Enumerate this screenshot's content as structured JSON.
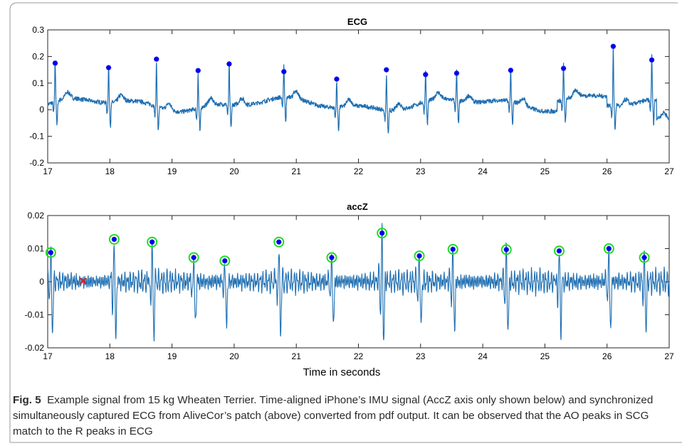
{
  "chart_data": [
    {
      "type": "line",
      "title": "ECG",
      "xlabel": "",
      "ylabel": "",
      "xlim": [
        17,
        27
      ],
      "ylim": [
        -0.2,
        0.3
      ],
      "x_ticks": [
        "17",
        "18",
        "19",
        "20",
        "21",
        "22",
        "23",
        "24",
        "25",
        "26",
        "27"
      ],
      "y_ticks": [
        "-0.2",
        "-0.1",
        "0",
        "0.1",
        "0.2",
        "0.3"
      ],
      "line_color": "#1f6fb2",
      "marker_color": "#0000ee",
      "r_peaks": {
        "x": [
          17.12,
          17.98,
          18.75,
          19.42,
          19.92,
          20.8,
          21.65,
          22.45,
          23.08,
          23.58,
          24.45,
          25.3,
          26.1,
          26.72
        ],
        "y": [
          0.175,
          0.158,
          0.19,
          0.147,
          0.172,
          0.143,
          0.115,
          0.15,
          0.132,
          0.137,
          0.148,
          0.155,
          0.238,
          0.187
        ]
      }
    },
    {
      "type": "line",
      "title": "accZ",
      "xlabel": "Time in seconds",
      "ylabel": "",
      "xlim": [
        17,
        27
      ],
      "ylim": [
        -0.02,
        0.02
      ],
      "x_ticks": [
        "17",
        "18",
        "19",
        "20",
        "21",
        "22",
        "23",
        "24",
        "25",
        "26",
        "27"
      ],
      "y_ticks": [
        "-0.02",
        "-0.01",
        "0",
        "0.01",
        "0.02"
      ],
      "line_color": "#1f6fb2",
      "marker_color": "#0000ee",
      "circle_color": "#22dd22",
      "ao_peaks": {
        "x": [
          17.05,
          18.07,
          18.68,
          19.35,
          19.85,
          20.72,
          21.57,
          22.38,
          22.98,
          23.52,
          24.38,
          25.23,
          26.03,
          26.6
        ],
        "y": [
          0.0088,
          0.0128,
          0.012,
          0.0073,
          0.0063,
          0.012,
          0.0073,
          0.0147,
          0.0078,
          0.0098,
          0.0097,
          0.0093,
          0.01,
          0.0073
        ]
      },
      "rejected_peak": {
        "x": 17.57,
        "y": 0.0002,
        "color": "#dd2222"
      }
    }
  ],
  "caption": {
    "label": "Fig. 5",
    "text": "Example signal from 15 kg Wheaten Terrier. Time-aligned iPhone’s IMU signal (AccZ axis only shown below) and synchronized simultaneously captured ECG from AliveCor’s patch (above) converted from pdf output. It can be observed that the AO peaks in SCG match to the R peaks in ECG"
  }
}
